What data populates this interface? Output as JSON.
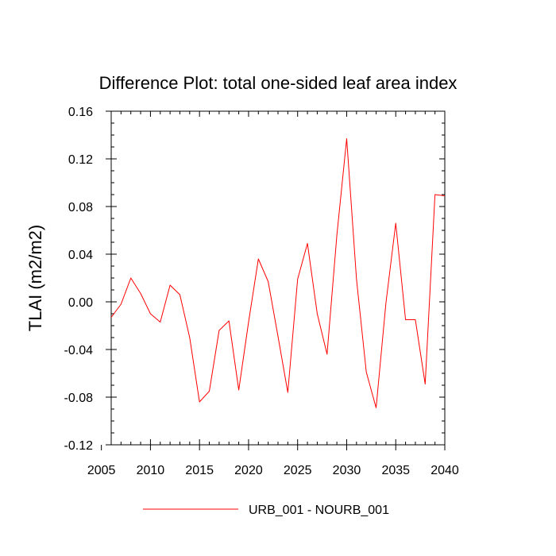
{
  "chart_data": {
    "type": "line",
    "title": "Difference Plot: total one-sided leaf area index",
    "xlabel": "",
    "ylabel": "TLAI  (m2/m2)",
    "xlim": [
      2006,
      2040
    ],
    "ylim": [
      -0.12,
      0.16
    ],
    "x_ticks": [
      2005,
      2010,
      2015,
      2020,
      2025,
      2030,
      2035,
      2040
    ],
    "x_tick_labels": [
      "2005",
      "2010",
      "2015",
      "2020",
      "2025",
      "2030",
      "2035",
      "2040"
    ],
    "y_ticks": [
      -0.12,
      -0.08,
      -0.04,
      0.0,
      0.04,
      0.08,
      0.12,
      0.16
    ],
    "y_tick_labels": [
      "-0.12",
      "-0.08",
      "-0.04",
      "0.00",
      "0.04",
      "0.08",
      "0.12",
      "0.16"
    ],
    "grid": false,
    "legend_position": "bottom",
    "series": [
      {
        "name": "URB_001 - NOURB_001",
        "color": "#ff0000",
        "x": [
          2006,
          2007,
          2008,
          2009,
          2010,
          2011,
          2012,
          2013,
          2014,
          2015,
          2016,
          2017,
          2018,
          2019,
          2020,
          2021,
          2022,
          2023,
          2024,
          2025,
          2026,
          2027,
          2028,
          2029,
          2030,
          2031,
          2032,
          2033,
          2034,
          2035,
          2036,
          2037,
          2038,
          2039,
          2040
        ],
        "values": [
          -0.013,
          -0.002,
          0.02,
          0.007,
          -0.01,
          -0.017,
          0.014,
          0.006,
          -0.03,
          -0.084,
          -0.075,
          -0.024,
          -0.016,
          -0.074,
          -0.017,
          0.036,
          0.017,
          -0.029,
          -0.076,
          0.019,
          0.049,
          -0.01,
          -0.044,
          0.056,
          0.137,
          0.019,
          -0.059,
          -0.089,
          -0.001,
          0.066,
          -0.015,
          -0.015,
          -0.069,
          0.09,
          0.089
        ]
      }
    ]
  }
}
